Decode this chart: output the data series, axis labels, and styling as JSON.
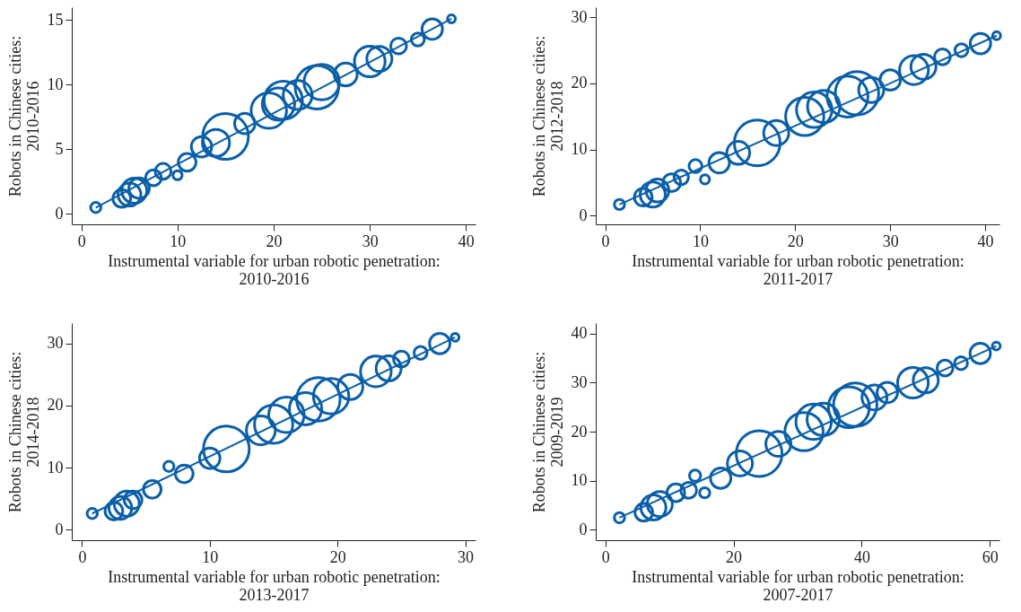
{
  "chart_data": [
    {
      "type": "bubble",
      "xlabel": "Instrumental variable for urban robotic penetration:\n2010-2016",
      "ylabel": "Robots in Chinese cities:\n2010-2016",
      "xlim": [
        -1,
        41
      ],
      "ylim": [
        -0.8,
        16
      ],
      "xticks": [
        0,
        10,
        20,
        30,
        40
      ],
      "yticks": [
        0,
        5,
        10,
        15
      ],
      "grid": false,
      "series": [
        {
          "color": "#0a5fa8",
          "x": [
            1.5,
            4.2,
            5,
            5.5,
            6,
            7.5,
            8.5,
            10,
            11,
            12.5,
            14,
            15,
            17,
            19.5,
            20.5,
            21,
            22.5,
            24.5,
            25,
            27.5,
            30,
            31,
            33,
            35,
            36.5,
            38.5
          ],
          "values": [
            0.5,
            1.2,
            1.5,
            1.8,
            2.0,
            2.8,
            3.3,
            3.0,
            4.0,
            5.2,
            5.5,
            6.0,
            7.0,
            8.0,
            8.5,
            8.8,
            9.2,
            9.8,
            10.2,
            10.8,
            11.8,
            12.0,
            13.0,
            13.5,
            14.3,
            15.1
          ],
          "sizes": [
            0.05,
            0.15,
            0.25,
            0.3,
            0.2,
            0.12,
            0.12,
            0.04,
            0.15,
            0.2,
            0.35,
            1.0,
            0.2,
            0.6,
            0.5,
            0.7,
            0.4,
            0.9,
            0.6,
            0.25,
            0.45,
            0.3,
            0.12,
            0.08,
            0.2,
            0.03
          ]
        },
        {
          "type": "line",
          "color": "#0a5fa8",
          "x": [
            1.5,
            38.5
          ],
          "values": [
            0.5,
            15.1
          ]
        }
      ]
    },
    {
      "type": "bubble",
      "xlabel": "Instrumental variable for urban robotic penetration:\n2011-2017",
      "ylabel": "Robots in Chinese cities:\n2012-2018",
      "xlim": [
        -1,
        41.5
      ],
      "ylim": [
        -1.3,
        31.5
      ],
      "xticks": [
        0,
        10,
        20,
        30,
        40
      ],
      "yticks": [
        0,
        10,
        20,
        30
      ],
      "grid": false,
      "series": [
        {
          "color": "#0a5fa8",
          "x": [
            1.5,
            4,
            5,
            5.5,
            7,
            8,
            9.5,
            10.5,
            12,
            14,
            16,
            18,
            21,
            22,
            23,
            25.5,
            26.5,
            28,
            30,
            32.5,
            33.5,
            35.5,
            37.5,
            39.5,
            41.2
          ],
          "values": [
            1.7,
            2.8,
            3.2,
            3.8,
            5,
            5.8,
            7.5,
            5.5,
            8,
            9.5,
            11,
            12.5,
            15,
            16,
            16.5,
            18,
            18.5,
            19,
            20.5,
            22,
            22.5,
            24,
            25,
            26,
            27.2
          ],
          "sizes": [
            0.05,
            0.15,
            0.3,
            0.25,
            0.15,
            0.1,
            0.08,
            0.04,
            0.2,
            0.25,
            1.0,
            0.3,
            0.7,
            0.6,
            0.5,
            0.8,
            0.9,
            0.3,
            0.2,
            0.4,
            0.3,
            0.12,
            0.08,
            0.2,
            0.03
          ]
        },
        {
          "type": "line",
          "color": "#0a5fa8",
          "x": [
            1.5,
            41.2
          ],
          "values": [
            1.7,
            27.2
          ]
        }
      ]
    },
    {
      "type": "bubble",
      "xlabel": "Instrumental variable for urban robotic penetration:\n2013-2017",
      "ylabel": "Robots in Chinese cities:\n2014-2018",
      "xlim": [
        -0.8,
        30.8
      ],
      "ylim": [
        -1.7,
        33.3
      ],
      "xticks": [
        0,
        10,
        20,
        30
      ],
      "yticks": [
        0,
        10,
        20,
        30
      ],
      "grid": false,
      "series": [
        {
          "color": "#0a5fa8",
          "x": [
            0.8,
            2.5,
            3,
            3.5,
            4,
            5.5,
            6.8,
            8,
            10,
            11.3,
            14,
            15,
            16,
            17.5,
            18.5,
            19.5,
            21,
            23,
            24,
            25,
            26.5,
            28,
            29.2
          ],
          "values": [
            2.6,
            3,
            3.5,
            4.2,
            4.8,
            6.5,
            10.2,
            9,
            11.5,
            13,
            16,
            17,
            18.5,
            19.5,
            21,
            21.5,
            23,
            25.5,
            26,
            27.5,
            28.5,
            30,
            31
          ],
          "sizes": [
            0.05,
            0.15,
            0.25,
            0.3,
            0.15,
            0.15,
            0.05,
            0.15,
            0.2,
            1.0,
            0.4,
            0.7,
            0.6,
            0.5,
            0.9,
            0.6,
            0.3,
            0.45,
            0.3,
            0.12,
            0.08,
            0.2,
            0.03
          ]
        },
        {
          "type": "line",
          "color": "#0a5fa8",
          "x": [
            0.8,
            29.2
          ],
          "values": [
            2.6,
            31
          ]
        }
      ]
    },
    {
      "type": "bubble",
      "xlabel": "Instrumental variable for urban robotic penetration:\n2007-2017",
      "ylabel": "Robots in Chinese cities:\n2009-2019",
      "xlim": [
        -1.5,
        61.5
      ],
      "ylim": [
        -2.2,
        42.2
      ],
      "xticks": [
        0,
        20,
        40,
        60
      ],
      "yticks": [
        0,
        10,
        20,
        30,
        40
      ],
      "grid": false,
      "series": [
        {
          "color": "#0a5fa8",
          "x": [
            2.2,
            6,
            7.5,
            8.5,
            11,
            13,
            14,
            15.5,
            18,
            21,
            24,
            27,
            31,
            32.5,
            34,
            38,
            39,
            42,
            44,
            48,
            50,
            53,
            55.5,
            58.5,
            61
          ],
          "values": [
            2.4,
            3.5,
            4.5,
            5.2,
            7.5,
            8,
            11,
            7.5,
            10.5,
            13.5,
            15.5,
            17.5,
            20,
            22,
            22.5,
            25,
            25.5,
            27,
            28,
            30,
            30.5,
            33,
            34,
            36,
            37.5
          ],
          "sizes": [
            0.05,
            0.15,
            0.3,
            0.3,
            0.15,
            0.12,
            0.06,
            0.05,
            0.2,
            0.3,
            1.0,
            0.3,
            0.7,
            0.6,
            0.5,
            0.8,
            0.9,
            0.3,
            0.2,
            0.45,
            0.3,
            0.12,
            0.08,
            0.2,
            0.03
          ]
        },
        {
          "type": "line",
          "color": "#0a5fa8",
          "x": [
            2.2,
            61
          ],
          "values": [
            2.4,
            37.5
          ]
        }
      ]
    }
  ]
}
